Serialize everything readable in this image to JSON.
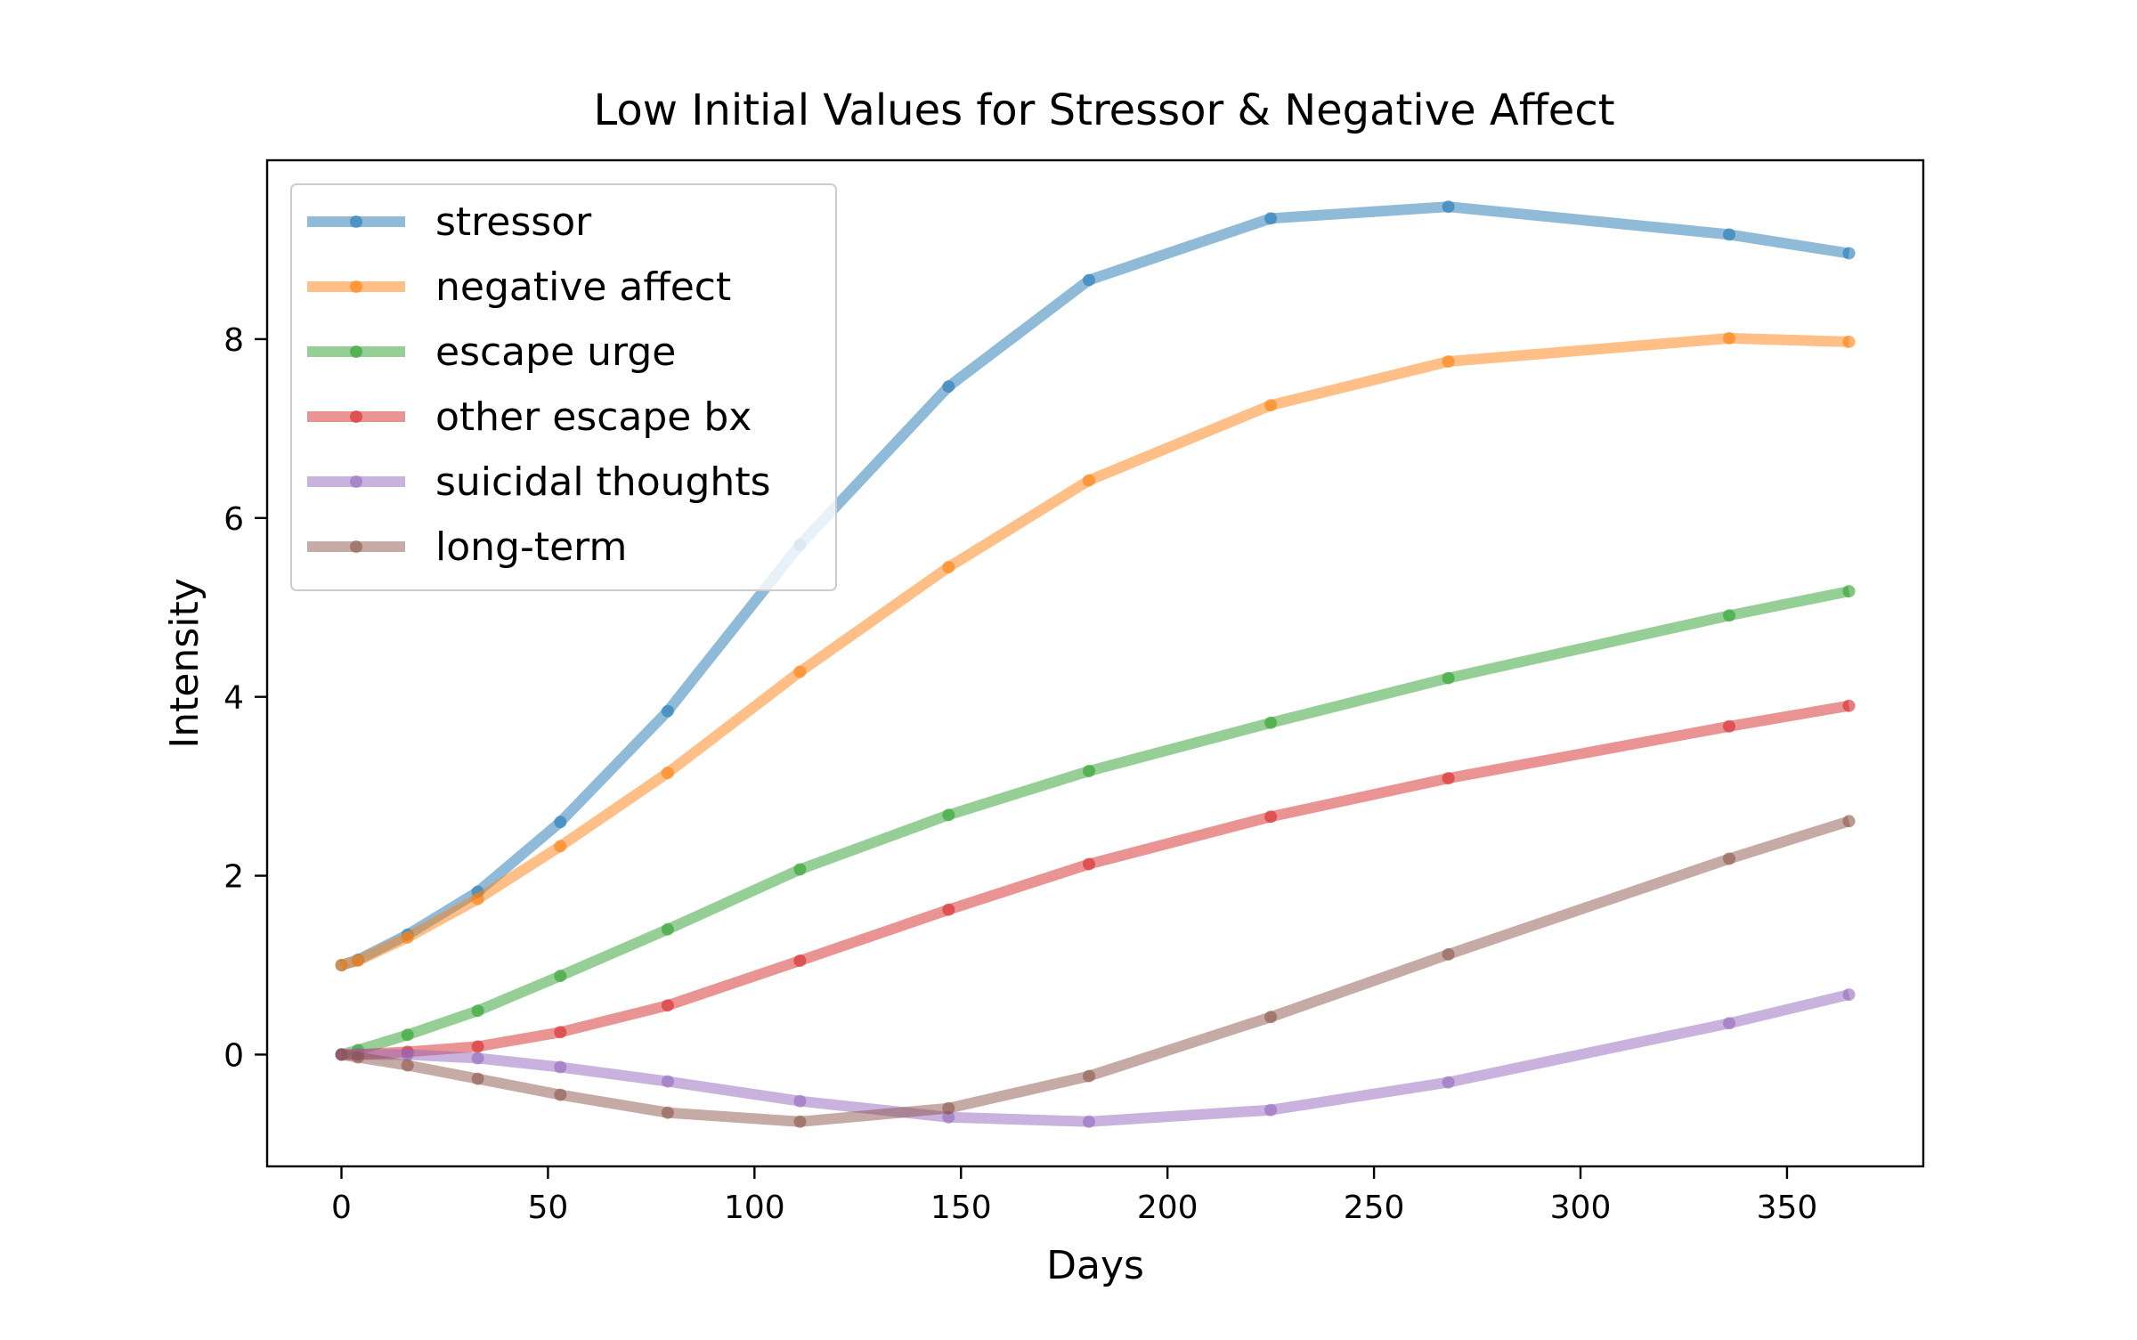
{
  "chart_data": {
    "type": "line",
    "title": "Low Initial Values for Stressor & Negative Affect",
    "xlabel": "Days",
    "ylabel": "Intensity",
    "xlim": [
      -18,
      383
    ],
    "ylim": [
      -1.25,
      10
    ],
    "xticks": [
      0,
      50,
      100,
      150,
      200,
      250,
      300,
      350
    ],
    "yticks": [
      0,
      2,
      4,
      6,
      8
    ],
    "grid": false,
    "legend_position": "top-left",
    "x": [
      0,
      4,
      16,
      33,
      53,
      79,
      111,
      147,
      181,
      225,
      268,
      336,
      365
    ],
    "series": [
      {
        "name": "stressor",
        "color": "#1f77b4",
        "values": [
          1.0,
          1.06,
          1.34,
          1.82,
          2.6,
          3.84,
          5.7,
          7.47,
          8.66,
          9.35,
          9.48,
          9.17,
          8.96
        ]
      },
      {
        "name": "negative affect",
        "color": "#ff7f0e",
        "values": [
          1.0,
          1.05,
          1.31,
          1.74,
          2.33,
          3.15,
          4.28,
          5.45,
          6.42,
          7.26,
          7.75,
          8.01,
          7.97
        ]
      },
      {
        "name": "escape urge",
        "color": "#2ca02c",
        "values": [
          0.0,
          0.05,
          0.22,
          0.49,
          0.88,
          1.4,
          2.07,
          2.68,
          3.17,
          3.71,
          4.21,
          4.91,
          5.18
        ]
      },
      {
        "name": "other escape bx",
        "color": "#d62728",
        "values": [
          0.0,
          0.0,
          0.03,
          0.09,
          0.25,
          0.55,
          1.05,
          1.62,
          2.13,
          2.66,
          3.09,
          3.67,
          3.9
        ]
      },
      {
        "name": "suicidal thoughts",
        "color": "#9467bd",
        "values": [
          0.0,
          0.0,
          0.0,
          -0.04,
          -0.14,
          -0.3,
          -0.52,
          -0.7,
          -0.75,
          -0.62,
          -0.31,
          0.35,
          0.67
        ]
      },
      {
        "name": "long-term",
        "color": "#8c564b",
        "values": [
          0.0,
          -0.03,
          -0.12,
          -0.27,
          -0.45,
          -0.65,
          -0.75,
          -0.6,
          -0.24,
          0.42,
          1.12,
          2.19,
          2.61
        ]
      }
    ]
  }
}
